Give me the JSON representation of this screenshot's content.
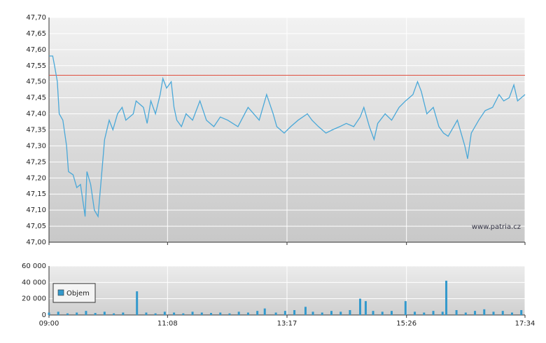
{
  "chart_data": [
    {
      "type": "line",
      "color": "#4aa8d8",
      "x": [
        "09:00",
        "09:04",
        "09:06",
        "09:09",
        "09:11",
        "09:15",
        "09:19",
        "09:21",
        "09:26",
        "09:30",
        "09:34",
        "09:38",
        "09:39",
        "09:41",
        "09:45",
        "09:49",
        "09:53",
        "09:55",
        "09:58",
        "10:00",
        "10:05",
        "10:09",
        "10:14",
        "10:19",
        "10:23",
        "10:31",
        "10:34",
        "10:42",
        "10:46",
        "10:50",
        "10:55",
        "11:00",
        "11:03",
        "11:07",
        "11:12",
        "11:15",
        "11:18",
        "11:23",
        "11:28",
        "11:35",
        "11:43",
        "11:50",
        "11:58",
        "12:05",
        "12:13",
        "12:24",
        "12:35",
        "12:41",
        "12:47",
        "12:55",
        "13:02",
        "13:06",
        "13:14",
        "13:21",
        "13:29",
        "13:39",
        "13:44",
        "13:51",
        "13:59",
        "14:06",
        "14:14",
        "14:21",
        "14:29",
        "14:36",
        "14:40",
        "14:46",
        "14:51",
        "14:55",
        "15:03",
        "15:10",
        "15:18",
        "15:25",
        "15:33",
        "15:38",
        "15:42",
        "15:48",
        "15:55",
        "16:01",
        "16:06",
        "16:11",
        "16:17",
        "16:21",
        "16:29",
        "16:32",
        "16:36",
        "16:44",
        "16:51",
        "16:59",
        "17:06",
        "17:11",
        "17:17",
        "17:22",
        "17:26",
        "17:34"
      ],
      "values": [
        47.58,
        47.58,
        47.55,
        47.5,
        47.4,
        47.38,
        47.3,
        47.22,
        47.21,
        47.17,
        47.18,
        47.1,
        47.08,
        47.22,
        47.18,
        47.1,
        47.08,
        47.15,
        47.25,
        47.32,
        47.38,
        47.35,
        47.4,
        47.42,
        47.38,
        47.4,
        47.44,
        47.42,
        47.37,
        47.44,
        47.4,
        47.46,
        47.51,
        47.48,
        47.5,
        47.42,
        47.38,
        47.36,
        47.4,
        47.38,
        47.44,
        47.38,
        47.36,
        47.39,
        47.38,
        47.36,
        47.42,
        47.4,
        47.38,
        47.46,
        47.4,
        47.36,
        47.34,
        47.36,
        47.38,
        47.4,
        47.38,
        47.36,
        47.34,
        47.35,
        47.36,
        47.37,
        47.36,
        47.39,
        47.42,
        47.36,
        47.32,
        47.37,
        47.4,
        47.38,
        47.42,
        47.44,
        47.46,
        47.5,
        47.47,
        47.4,
        47.42,
        47.36,
        47.34,
        47.33,
        47.36,
        47.38,
        47.3,
        47.26,
        47.34,
        47.38,
        47.41,
        47.42,
        47.46,
        47.44,
        47.45,
        47.49,
        47.44,
        47.46
      ],
      "xlim": [
        "09:00",
        "17:34"
      ],
      "ylim": [
        47.0,
        47.7
      ],
      "yticks": [
        {
          "value": 47.0,
          "label": "47,00"
        },
        {
          "value": 47.05,
          "label": "47,05"
        },
        {
          "value": 47.1,
          "label": "47,10"
        },
        {
          "value": 47.15,
          "label": "47,15"
        },
        {
          "value": 47.2,
          "label": "47,20"
        },
        {
          "value": 47.25,
          "label": "47,25"
        },
        {
          "value": 47.3,
          "label": "47,30"
        },
        {
          "value": 47.35,
          "label": "47,35"
        },
        {
          "value": 47.4,
          "label": "47,40"
        },
        {
          "value": 47.45,
          "label": "47,45"
        },
        {
          "value": 47.5,
          "label": "47,50"
        },
        {
          "value": 47.55,
          "label": "47,55"
        },
        {
          "value": 47.6,
          "label": "47,60"
        },
        {
          "value": 47.65,
          "label": "47,65"
        },
        {
          "value": 47.7,
          "label": "47,70"
        }
      ],
      "reference_line": 47.52,
      "reference_color": "#e05040",
      "annotation": "www.patria.cz",
      "grid": true
    },
    {
      "type": "bar",
      "color": "#3399cc",
      "series": [
        {
          "name": "Objem",
          "color": "#3399cc",
          "x": [
            "09:00",
            "09:10",
            "09:20",
            "09:30",
            "09:40",
            "09:50",
            "10:00",
            "10:10",
            "10:20",
            "10:35",
            "10:45",
            "10:55",
            "11:05",
            "11:15",
            "11:25",
            "11:35",
            "11:45",
            "11:55",
            "12:05",
            "12:15",
            "12:25",
            "12:35",
            "12:45",
            "12:53",
            "13:05",
            "13:15",
            "13:25",
            "13:37",
            "13:45",
            "13:55",
            "14:05",
            "14:15",
            "14:25",
            "14:36",
            "14:42",
            "14:50",
            "15:00",
            "15:10",
            "15:25",
            "15:35",
            "15:45",
            "15:55",
            "16:05",
            "16:09",
            "16:20",
            "16:30",
            "16:40",
            "16:50",
            "17:00",
            "17:10",
            "17:20",
            "17:30"
          ],
          "values": [
            3000,
            4000,
            2000,
            3000,
            5000,
            2500,
            4000,
            2000,
            3000,
            29000,
            3000,
            2000,
            4000,
            3000,
            2000,
            4000,
            3000,
            2500,
            3000,
            2000,
            4000,
            3000,
            5000,
            8000,
            3000,
            5000,
            6000,
            10000,
            4000,
            3000,
            5000,
            4000,
            6000,
            20000,
            17000,
            5000,
            4000,
            5000,
            17000,
            4000,
            3000,
            5000,
            4000,
            42000,
            6000,
            3000,
            5000,
            7000,
            4000,
            5000,
            3000,
            6000
          ]
        }
      ],
      "xlim": [
        "09:00",
        "17:34"
      ],
      "xticks": [
        "09:00",
        "11:08",
        "13:17",
        "15:26",
        "17:34"
      ],
      "ylim": [
        0,
        60000
      ],
      "yticks": [
        0,
        {
          "value": 20000,
          "label": "20 000"
        },
        {
          "value": 40000,
          "label": "40 000"
        },
        {
          "value": 60000,
          "label": "60 000"
        }
      ],
      "grid": true,
      "legend": "upper-left"
    }
  ]
}
